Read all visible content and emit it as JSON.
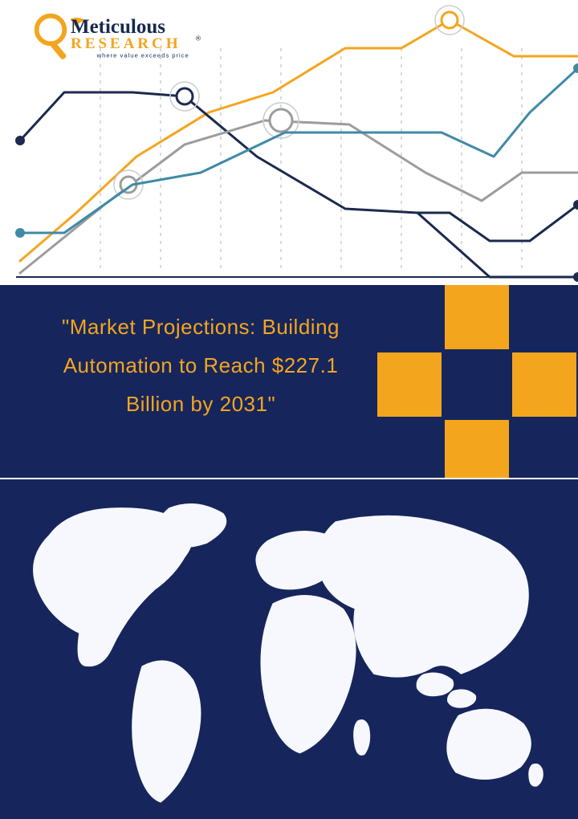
{
  "brand": {
    "name_line1": "Meticulous",
    "name_line2": "RESEARCH",
    "tagline": "where value exceeds price",
    "name_color": "#17294f",
    "research_color": "#f4a51e",
    "tagline_color": "#17294f",
    "registered_mark": "®"
  },
  "colors": {
    "navy": "#16265c",
    "gold": "#f4a51e",
    "white": "#ffffff",
    "chart_line_navy": "#1b2a4e",
    "chart_line_gold": "#f4a51e",
    "chart_line_gray": "#9c9c9c",
    "chart_line_teal": "#3f8aa6",
    "chart_grid": "#d0d7e0",
    "chart_dashed": "#b7c3d6",
    "marker_ring_gray": "#c8cdd4",
    "map_fill": "#f6f8fe"
  },
  "chart": {
    "type": "line",
    "xrange": [
      0,
      720
    ],
    "yrange": [
      0,
      355
    ],
    "grid_dashed_x": [
      125,
      200,
      275,
      350,
      425,
      500,
      575,
      650
    ],
    "grid_dashed_ytop": 60,
    "grid_dashed_ybottom": 340,
    "baseline_y": 345,
    "series": [
      {
        "name": "gold",
        "stroke": "#f4a51e",
        "stroke_width": 3,
        "points": [
          [
            25,
            325
          ],
          [
            95,
            265
          ],
          [
            170,
            195
          ],
          [
            260,
            140
          ],
          [
            340,
            115
          ],
          [
            430,
            60
          ],
          [
            500,
            60
          ],
          [
            560,
            25
          ],
          [
            640,
            70
          ],
          [
            720,
            70
          ]
        ],
        "markers": [
          {
            "x": 560,
            "y": 25,
            "r": 10,
            "ring": true
          }
        ]
      },
      {
        "name": "navy",
        "stroke": "#1b2a4e",
        "stroke_width": 3,
        "points": [
          [
            25,
            175
          ],
          [
            80,
            115
          ],
          [
            165,
            115
          ],
          [
            230,
            120
          ],
          [
            320,
            195
          ],
          [
            430,
            260
          ],
          [
            520,
            265
          ],
          [
            610,
            345
          ],
          [
            720,
            345
          ]
        ],
        "dot_ends": [
          [
            25,
            175
          ],
          [
            720,
            345
          ]
        ],
        "markers": [
          {
            "x": 230,
            "y": 120,
            "r": 10,
            "ring": true
          }
        ]
      },
      {
        "name": "gray",
        "stroke": "#9c9c9c",
        "stroke_width": 3,
        "points": [
          [
            25,
            340
          ],
          [
            130,
            255
          ],
          [
            230,
            180
          ],
          [
            330,
            150
          ],
          [
            435,
            155
          ],
          [
            530,
            215
          ],
          [
            600,
            250
          ],
          [
            650,
            215
          ],
          [
            720,
            215
          ]
        ],
        "markers": [
          {
            "x": 160,
            "y": 230,
            "r": 10,
            "ring": true
          },
          {
            "x": 350,
            "y": 150,
            "r": 14,
            "ring": true
          }
        ]
      },
      {
        "name": "teal",
        "stroke": "#3f8aa6",
        "stroke_width": 3,
        "points": [
          [
            25,
            290
          ],
          [
            80,
            290
          ],
          [
            165,
            230
          ],
          [
            250,
            215
          ],
          [
            355,
            165
          ],
          [
            430,
            165
          ],
          [
            550,
            165
          ],
          [
            615,
            195
          ],
          [
            660,
            140
          ],
          [
            720,
            85
          ]
        ],
        "dot_ends": [
          [
            25,
            290
          ],
          [
            720,
            85
          ]
        ]
      },
      {
        "name": "navy2",
        "stroke": "#1b2a4e",
        "stroke_width": 3,
        "points": [
          [
            520,
            265
          ],
          [
            560,
            265
          ],
          [
            610,
            300
          ],
          [
            660,
            300
          ],
          [
            720,
            255
          ]
        ],
        "dot_ends": [
          [
            720,
            255
          ]
        ]
      }
    ]
  },
  "headline": {
    "text": "\"Market Projections: Building Automation to Reach $227.1 Billion by 2031\"",
    "color": "#f4a51e",
    "fontsize": 26
  },
  "squares": {
    "comment": "grid of gold squares on navy at right of mid band",
    "cell": 80,
    "gap": 4,
    "origin_x": 470,
    "origin_y": 0,
    "cells": [
      {
        "row": 0,
        "col": 1,
        "color": "#f4a51e"
      },
      {
        "row": 1,
        "col": 0,
        "color": "#f4a51e"
      },
      {
        "row": 1,
        "col": 2,
        "color": "#f4a51e"
      },
      {
        "row": 2,
        "col": 1,
        "color": "#f4a51e"
      }
    ]
  },
  "map": {
    "background": "#16265c",
    "land_fill": "#f6f8fe"
  }
}
